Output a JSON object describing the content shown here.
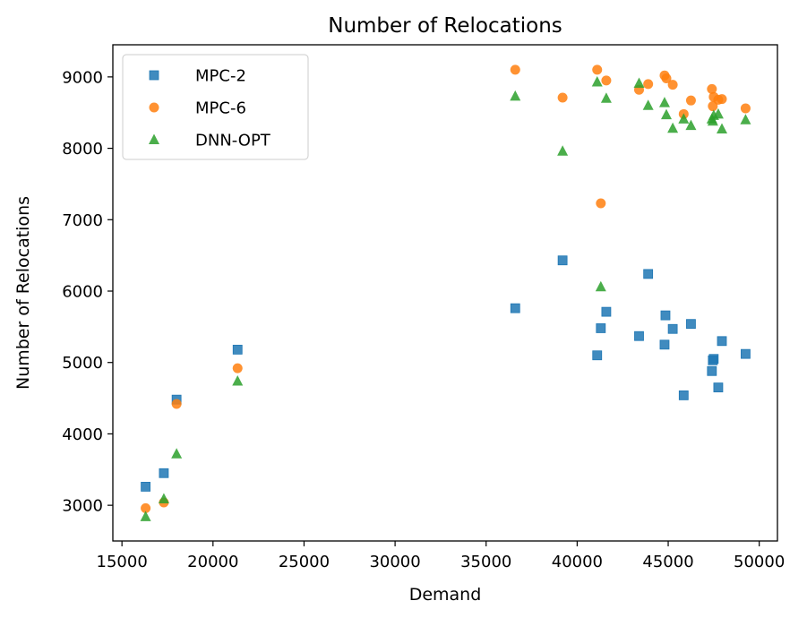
{
  "chart_data": {
    "type": "scatter",
    "title": "Number of Relocations",
    "xlabel": "Demand",
    "ylabel": "Number of Relocations",
    "xlim": [
      14500,
      51000
    ],
    "ylim": [
      2500,
      9450
    ],
    "xticks": [
      15000,
      20000,
      25000,
      30000,
      35000,
      40000,
      45000,
      50000
    ],
    "yticks": [
      3000,
      4000,
      5000,
      6000,
      7000,
      8000,
      9000
    ],
    "grid": false,
    "legend_position": "top-left",
    "series": [
      {
        "name": "MPC-2",
        "marker": "square",
        "color": "#1f77b4",
        "x": [
          16300,
          17300,
          18000,
          21350,
          36600,
          39200,
          41100,
          41300,
          41600,
          43400,
          43900,
          44800,
          44850,
          45250,
          45850,
          46250,
          47400,
          47450,
          47500,
          47750,
          47950,
          49250
        ],
        "y": [
          3260,
          3450,
          4480,
          5180,
          5760,
          6430,
          5100,
          5480,
          5710,
          5370,
          6240,
          5250,
          5660,
          5470,
          4540,
          5540,
          4880,
          5030,
          5050,
          4650,
          5300,
          5120
        ]
      },
      {
        "name": "MPC-6",
        "marker": "circle",
        "color": "#ff7f0e",
        "x": [
          16300,
          17300,
          18000,
          21350,
          36600,
          39200,
          41100,
          41300,
          41600,
          43400,
          43900,
          44800,
          44900,
          45250,
          45850,
          46250,
          47400,
          47450,
          47500,
          47750,
          47950,
          49250
        ],
        "y": [
          2960,
          3040,
          4420,
          4920,
          9100,
          8710,
          9100,
          7230,
          8950,
          8820,
          8900,
          9020,
          8980,
          8890,
          8480,
          8670,
          8830,
          8590,
          8720,
          8680,
          8690,
          8560
        ]
      },
      {
        "name": "DNN-OPT",
        "marker": "triangle",
        "color": "#2ca02c",
        "x": [
          16300,
          17300,
          18000,
          21350,
          36600,
          39200,
          41100,
          41300,
          41600,
          43400,
          43900,
          44800,
          44900,
          45250,
          45850,
          46250,
          47400,
          47450,
          47500,
          47750,
          47950,
          49250
        ],
        "y": [
          2840,
          3090,
          3720,
          4740,
          8730,
          7960,
          8930,
          6060,
          8700,
          8910,
          8600,
          8640,
          8470,
          8280,
          8410,
          8320,
          8410,
          8380,
          8460,
          8480,
          8270,
          8400
        ]
      }
    ]
  }
}
